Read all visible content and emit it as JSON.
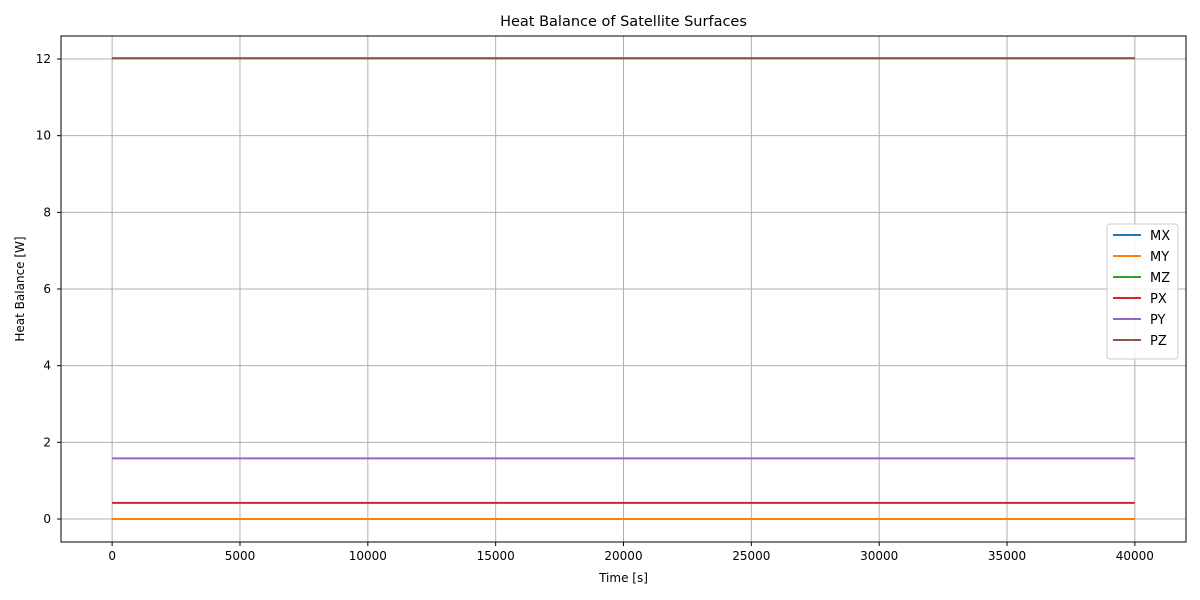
{
  "chart_data": {
    "type": "line",
    "title": "Heat Balance of Satellite Surfaces",
    "xlabel": "Time [s]",
    "ylabel": "Heat Balance [W]",
    "xlim": [
      -2000,
      42000
    ],
    "ylim": [
      -0.6,
      12.6
    ],
    "xticks": [
      0,
      5000,
      10000,
      15000,
      20000,
      25000,
      30000,
      35000,
      40000
    ],
    "yticks": [
      0,
      2,
      4,
      6,
      8,
      10,
      12
    ],
    "xtick_labels": [
      "0",
      "5000",
      "10000",
      "15000",
      "20000",
      "25000",
      "30000",
      "35000",
      "40000"
    ],
    "ytick_labels": [
      "0",
      "2",
      "4",
      "6",
      "8",
      "10",
      "12"
    ],
    "x": [
      0,
      40000
    ],
    "grid": true,
    "legend_position": "right",
    "series": [
      {
        "name": "MX",
        "color": "#1f77b4",
        "values": [
          0.0,
          0.0
        ]
      },
      {
        "name": "MY",
        "color": "#ff7f0e",
        "values": [
          0.0,
          0.0
        ]
      },
      {
        "name": "MZ",
        "color": "#2ca02c",
        "values": [
          12.02,
          12.02
        ]
      },
      {
        "name": "PX",
        "color": "#d62728",
        "values": [
          0.42,
          0.42
        ]
      },
      {
        "name": "PY",
        "color": "#9467bd",
        "values": [
          1.58,
          1.58
        ]
      },
      {
        "name": "PZ",
        "color": "#8c564b",
        "values": [
          12.02,
          12.02
        ]
      }
    ]
  }
}
